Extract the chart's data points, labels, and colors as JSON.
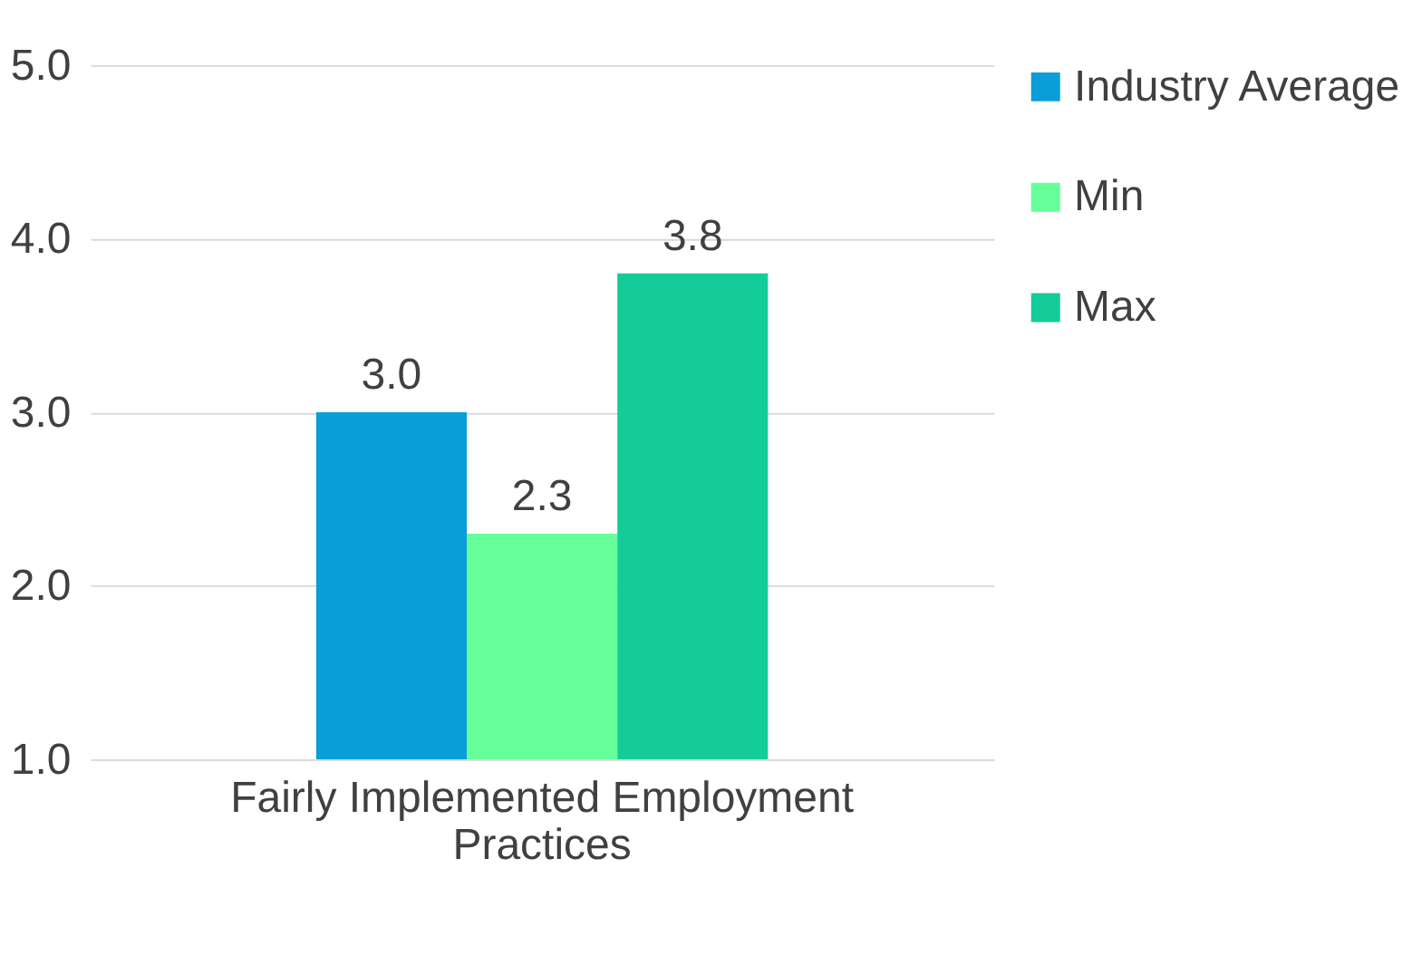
{
  "chart_data": {
    "type": "bar",
    "categories": [
      "Fairly Implemented Employment Practices"
    ],
    "series": [
      {
        "name": "Industry Average",
        "color": "#0a9ed8",
        "values": [
          3.0
        ],
        "value_labels": [
          "3.0"
        ]
      },
      {
        "name": "Min",
        "color": "#66ff99",
        "values": [
          2.3
        ],
        "value_labels": [
          "2.3"
        ]
      },
      {
        "name": "Max",
        "color": "#14cc99",
        "values": [
          3.8
        ],
        "value_labels": [
          "3.8"
        ]
      }
    ],
    "ylim": [
      1,
      5
    ],
    "yticks": [
      {
        "value": 1,
        "label": "1.0"
      },
      {
        "value": 2,
        "label": "2.0"
      },
      {
        "value": 3,
        "label": "3.0"
      },
      {
        "value": 4,
        "label": "4.0"
      },
      {
        "value": 5,
        "label": "5.0"
      }
    ],
    "grid": "y",
    "legend": "right"
  }
}
